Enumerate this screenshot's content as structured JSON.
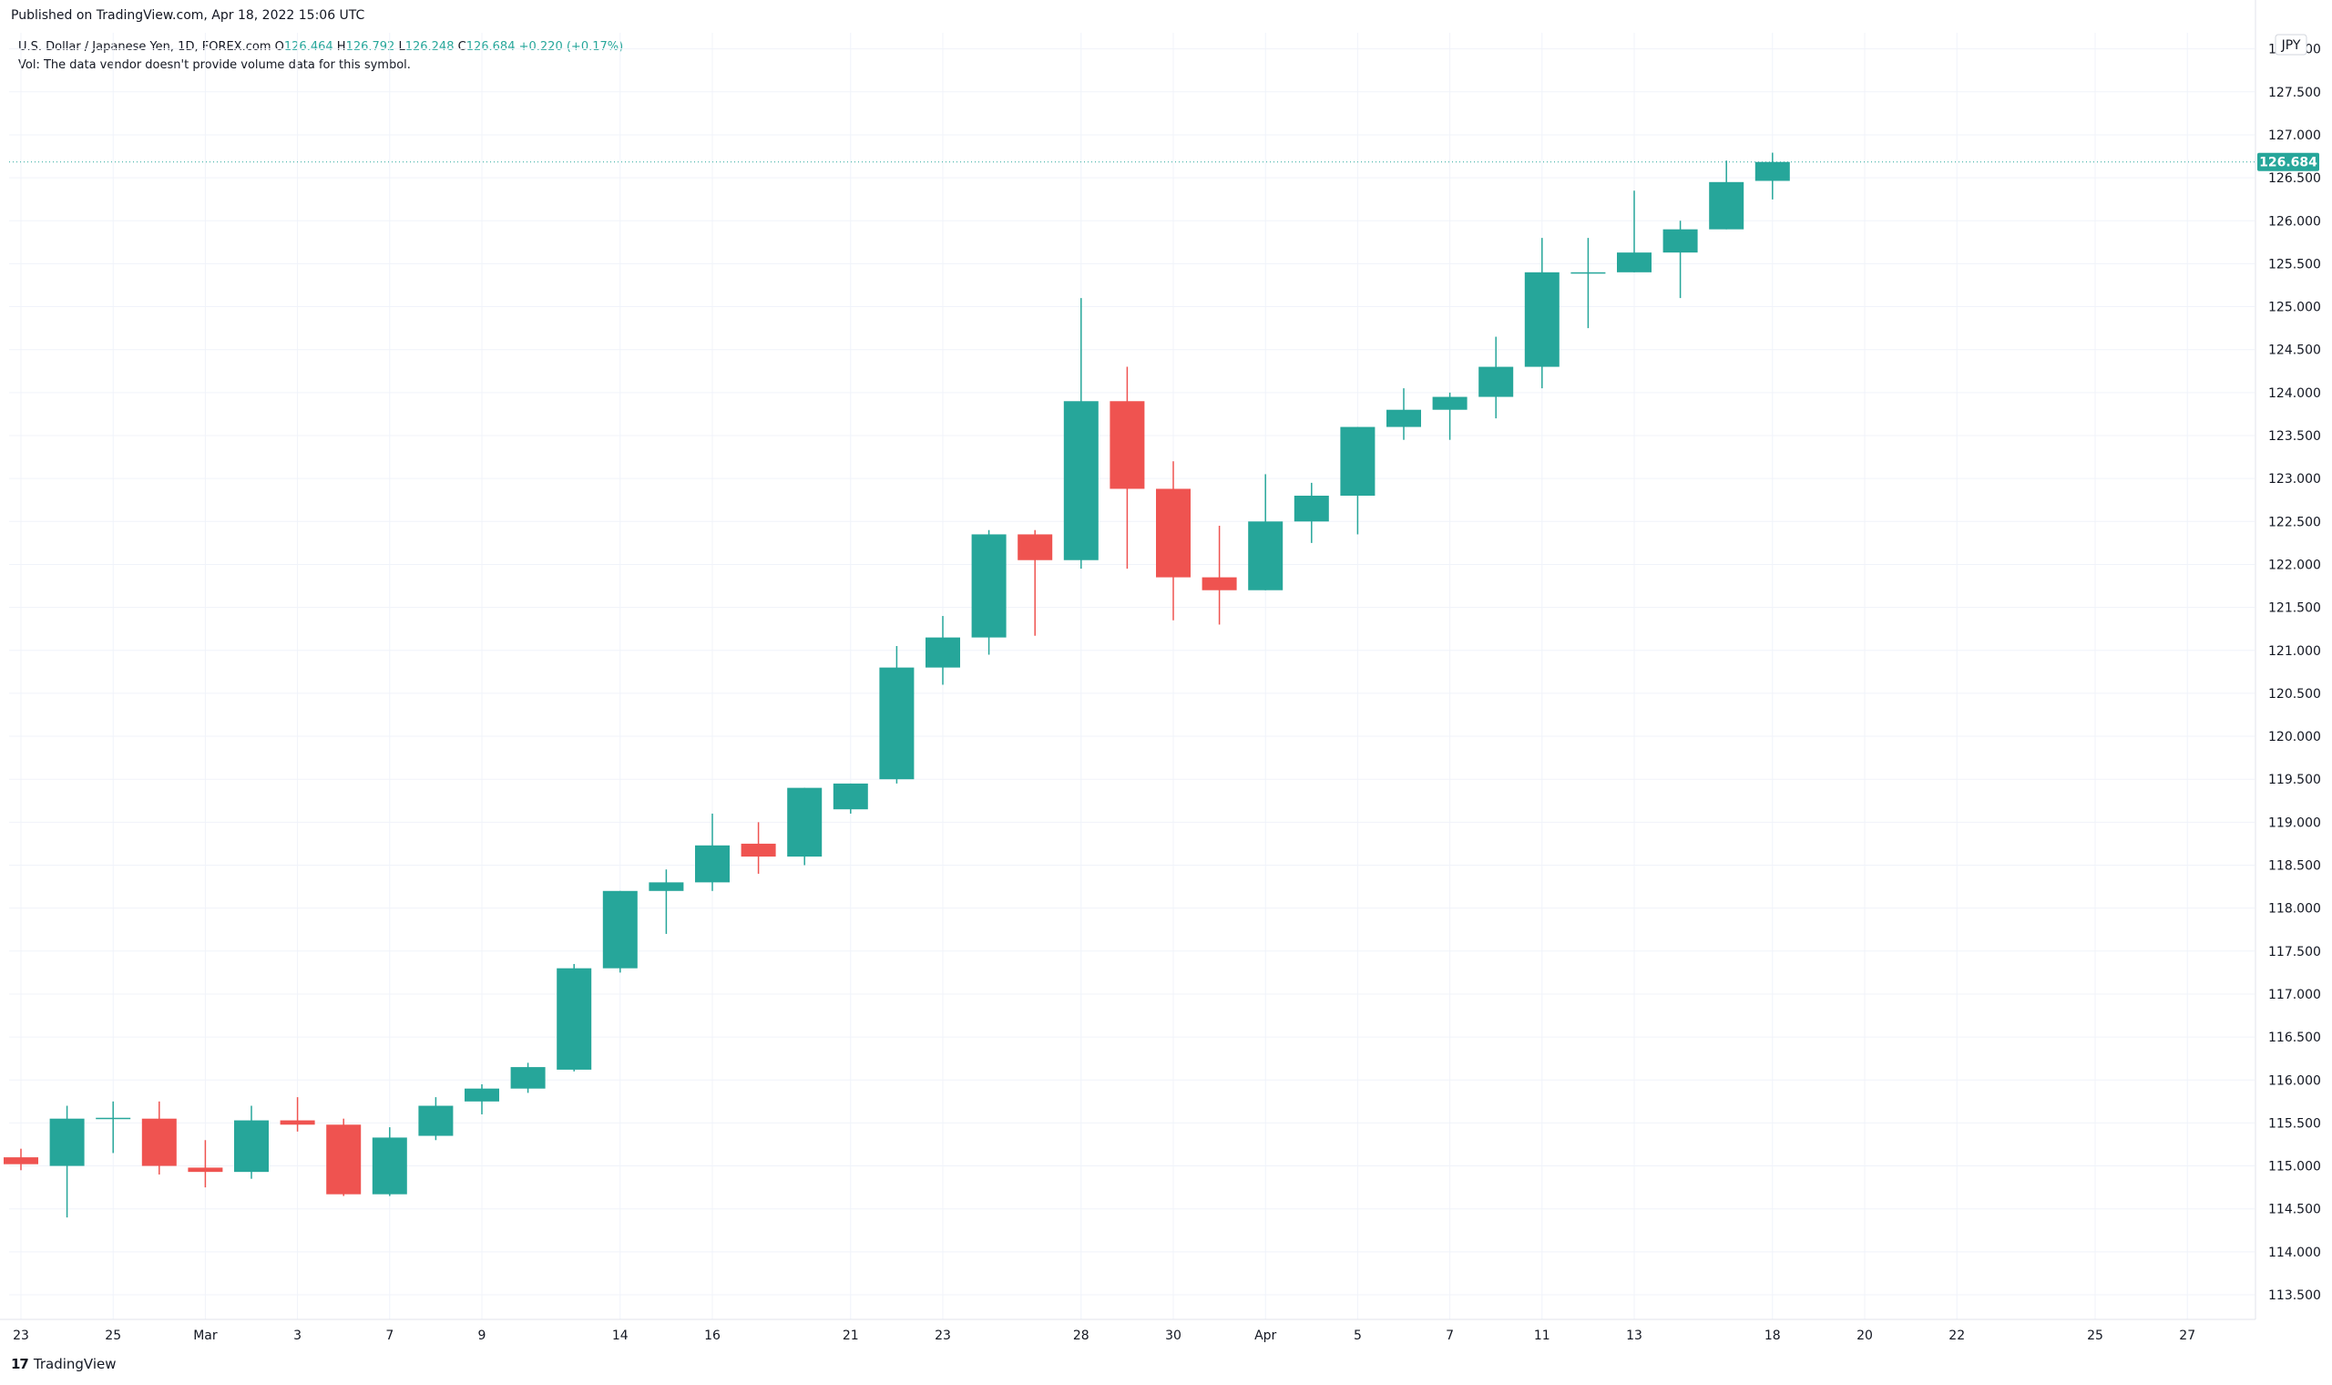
{
  "header": {
    "published": "Published on TradingView.com, Apr 18, 2022 15:06 UTC"
  },
  "legend": {
    "symbol": "U.S. Dollar / Japanese Yen, 1D, FOREX.com",
    "open_label": "O",
    "open": "126.464",
    "high_label": "H",
    "high": "126.792",
    "low_label": "L",
    "low": "126.248",
    "close_label": "C",
    "close": "126.684",
    "change": "+0.220 (+0.17%)",
    "volume_note": "Vol: The data vendor doesn't provide volume data for this symbol."
  },
  "currency_badge": "JPY",
  "last_price_label": "126.684",
  "footer": {
    "brand": "TradingView",
    "logo": "17"
  },
  "colors": {
    "up": "#26a69a",
    "down": "#ef5350",
    "grid": "#f0f3fa",
    "axis_text": "#131722",
    "price_line": "#26a69a"
  },
  "chart_data": {
    "type": "candlestick",
    "ylim": [
      113.0,
      128.5
    ],
    "y_ticks": [
      "113.500",
      "114.000",
      "114.500",
      "115.000",
      "115.500",
      "116.000",
      "116.500",
      "117.000",
      "117.500",
      "118.000",
      "118.500",
      "119.000",
      "119.500",
      "120.000",
      "120.500",
      "121.000",
      "121.500",
      "122.000",
      "122.500",
      "123.000",
      "123.500",
      "124.000",
      "124.500",
      "125.000",
      "125.500",
      "126.000",
      "126.500",
      "127.000",
      "127.500",
      "128.000"
    ],
    "x_ticks": [
      {
        "label": "23",
        "slot": 0
      },
      {
        "label": "25",
        "slot": 2
      },
      {
        "label": "Mar",
        "slot": 4
      },
      {
        "label": "3",
        "slot": 6
      },
      {
        "label": "7",
        "slot": 8
      },
      {
        "label": "9",
        "slot": 10
      },
      {
        "label": "14",
        "slot": 13
      },
      {
        "label": "16",
        "slot": 15
      },
      {
        "label": "21",
        "slot": 18
      },
      {
        "label": "23",
        "slot": 20
      },
      {
        "label": "28",
        "slot": 23
      },
      {
        "label": "30",
        "slot": 25
      },
      {
        "label": "Apr",
        "slot": 27
      },
      {
        "label": "5",
        "slot": 29
      },
      {
        "label": "7",
        "slot": 31
      },
      {
        "label": "11",
        "slot": 33
      },
      {
        "label": "13",
        "slot": 35
      },
      {
        "label": "18",
        "slot": 38
      },
      {
        "label": "20",
        "slot": 40
      },
      {
        "label": "22",
        "slot": 42
      },
      {
        "label": "25",
        "slot": 45
      },
      {
        "label": "27",
        "slot": 47
      }
    ],
    "candles": [
      {
        "date": "Feb 23",
        "o": 115.1,
        "h": 115.2,
        "l": 114.95,
        "c": 115.02
      },
      {
        "date": "Feb 24",
        "o": 115.0,
        "h": 115.7,
        "l": 114.4,
        "c": 115.55
      },
      {
        "date": "Feb 25",
        "o": 115.55,
        "h": 115.75,
        "l": 115.15,
        "c": 115.56
      },
      {
        "date": "Feb 28",
        "o": 115.55,
        "h": 115.75,
        "l": 114.9,
        "c": 115.0
      },
      {
        "date": "Mar 1",
        "o": 114.98,
        "h": 115.3,
        "l": 114.75,
        "c": 114.93
      },
      {
        "date": "Mar 2",
        "o": 114.93,
        "h": 115.7,
        "l": 114.85,
        "c": 115.53
      },
      {
        "date": "Mar 3",
        "o": 115.53,
        "h": 115.8,
        "l": 115.4,
        "c": 115.48
      },
      {
        "date": "Mar 4",
        "o": 115.48,
        "h": 115.55,
        "l": 114.65,
        "c": 114.67
      },
      {
        "date": "Mar 7",
        "o": 114.67,
        "h": 115.45,
        "l": 114.65,
        "c": 115.33
      },
      {
        "date": "Mar 8",
        "o": 115.35,
        "h": 115.8,
        "l": 115.3,
        "c": 115.7
      },
      {
        "date": "Mar 9",
        "o": 115.75,
        "h": 115.95,
        "l": 115.6,
        "c": 115.9
      },
      {
        "date": "Mar 10",
        "o": 115.9,
        "h": 116.2,
        "l": 115.85,
        "c": 116.15
      },
      {
        "date": "Mar 11",
        "o": 116.12,
        "h": 117.35,
        "l": 116.1,
        "c": 117.3
      },
      {
        "date": "Mar 14",
        "o": 117.3,
        "h": 118.2,
        "l": 117.25,
        "c": 118.2
      },
      {
        "date": "Mar 15",
        "o": 118.2,
        "h": 118.45,
        "l": 117.7,
        "c": 118.3
      },
      {
        "date": "Mar 16",
        "o": 118.3,
        "h": 119.1,
        "l": 118.2,
        "c": 118.73
      },
      {
        "date": "Mar 17",
        "o": 118.75,
        "h": 119.0,
        "l": 118.4,
        "c": 118.6
      },
      {
        "date": "Mar 18",
        "o": 118.6,
        "h": 119.4,
        "l": 118.5,
        "c": 119.4
      },
      {
        "date": "Mar 21",
        "o": 119.15,
        "h": 119.45,
        "l": 119.1,
        "c": 119.45
      },
      {
        "date": "Mar 22",
        "o": 119.5,
        "h": 121.05,
        "l": 119.45,
        "c": 120.8
      },
      {
        "date": "Mar 23",
        "o": 120.8,
        "h": 121.4,
        "l": 120.6,
        "c": 121.15
      },
      {
        "date": "Mar 24",
        "o": 121.15,
        "h": 122.4,
        "l": 120.95,
        "c": 122.35
      },
      {
        "date": "Mar 25",
        "o": 122.35,
        "h": 122.4,
        "l": 121.17,
        "c": 122.05
      },
      {
        "date": "Mar 28",
        "o": 122.05,
        "h": 125.1,
        "l": 121.95,
        "c": 123.9
      },
      {
        "date": "Mar 29",
        "o": 123.9,
        "h": 124.3,
        "l": 121.95,
        "c": 122.88
      },
      {
        "date": "Mar 30",
        "o": 122.88,
        "h": 123.2,
        "l": 121.35,
        "c": 121.85
      },
      {
        "date": "Mar 31",
        "o": 121.85,
        "h": 122.45,
        "l": 121.3,
        "c": 121.7
      },
      {
        "date": "Apr 1",
        "o": 121.7,
        "h": 123.05,
        "l": 121.7,
        "c": 122.5
      },
      {
        "date": "Apr 4",
        "o": 122.5,
        "h": 122.95,
        "l": 122.25,
        "c": 122.8
      },
      {
        "date": "Apr 5",
        "o": 122.8,
        "h": 123.6,
        "l": 122.35,
        "c": 123.6
      },
      {
        "date": "Apr 6",
        "o": 123.6,
        "h": 124.05,
        "l": 123.45,
        "c": 123.8
      },
      {
        "date": "Apr 7",
        "o": 123.8,
        "h": 124.0,
        "l": 123.45,
        "c": 123.95
      },
      {
        "date": "Apr 8",
        "o": 123.95,
        "h": 124.65,
        "l": 123.7,
        "c": 124.3
      },
      {
        "date": "Apr 11",
        "o": 124.3,
        "h": 125.8,
        "l": 124.05,
        "c": 125.4
      },
      {
        "date": "Apr 12",
        "o": 125.4,
        "h": 125.8,
        "l": 124.75,
        "c": 125.4
      },
      {
        "date": "Apr 13",
        "o": 125.4,
        "h": 126.35,
        "l": 125.4,
        "c": 125.63
      },
      {
        "date": "Apr 14",
        "o": 125.63,
        "h": 126.0,
        "l": 125.1,
        "c": 125.9
      },
      {
        "date": "Apr 15",
        "o": 125.9,
        "h": 126.7,
        "l": 125.9,
        "c": 126.45
      },
      {
        "date": "Apr 18",
        "o": 126.464,
        "h": 126.792,
        "l": 126.248,
        "c": 126.684
      }
    ]
  }
}
